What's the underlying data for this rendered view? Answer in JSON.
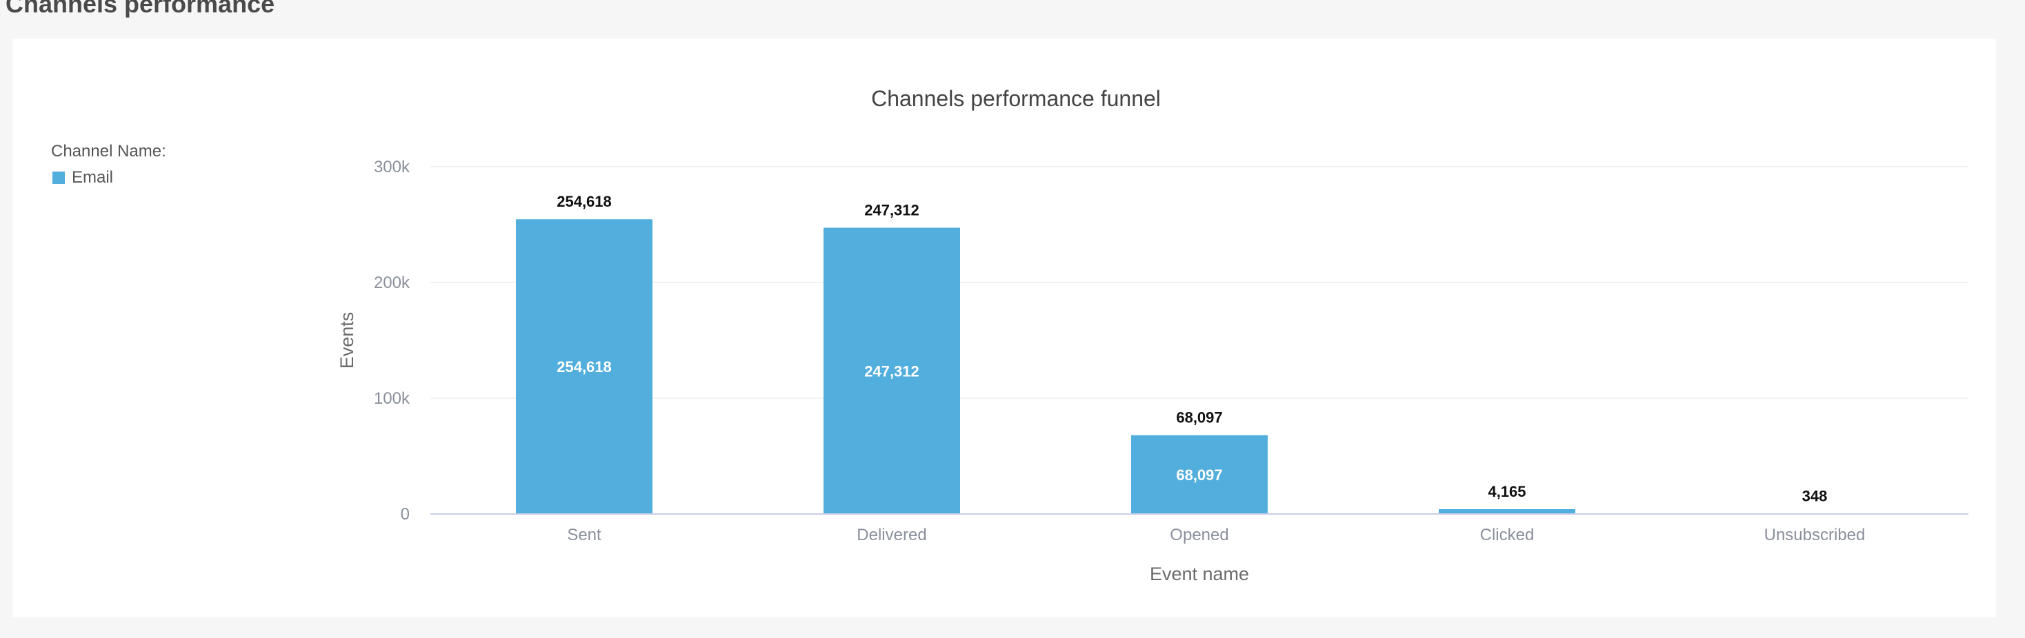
{
  "page": {
    "section_title": "Channels performance"
  },
  "legend": {
    "label": "Channel Name:",
    "items": [
      {
        "name": "Email",
        "color": "#52aedd"
      }
    ]
  },
  "colors": {
    "bar": "#52aedd",
    "grid": "#e6e6e6",
    "axis": "#c9cde6",
    "tick_text": "#8a8f9c",
    "label_text": "#6b6b6b",
    "title_text": "#444444"
  },
  "chart_data": {
    "type": "bar",
    "title": "Channels performance funnel",
    "xlabel": "Event name",
    "ylabel": "Events",
    "categories": [
      "Sent",
      "Delivered",
      "Opened",
      "Clicked",
      "Unsubscribed"
    ],
    "series": [
      {
        "name": "Email",
        "values": [
          254618,
          247312,
          68097,
          4165,
          348
        ]
      }
    ],
    "data_labels": [
      "254,618",
      "247,312",
      "68,097",
      "4,165",
      "348"
    ],
    "yticks": [
      {
        "value": 0,
        "label": "0"
      },
      {
        "value": 100000,
        "label": "100k"
      },
      {
        "value": 200000,
        "label": "200k"
      },
      {
        "value": 300000,
        "label": "300k"
      }
    ],
    "ylim": [
      0,
      300000
    ],
    "grid": true,
    "legend_position": "left"
  }
}
